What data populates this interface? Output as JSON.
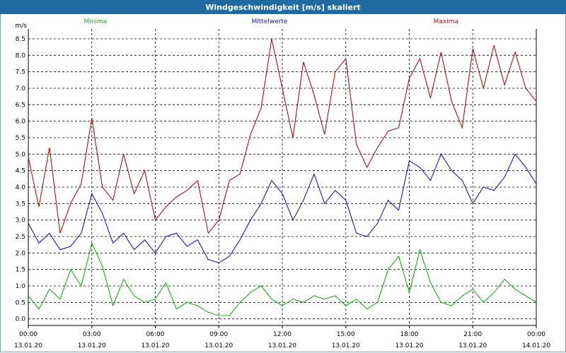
{
  "window": {
    "title": "Windgeschwindigkeit [m/s] skaliert"
  },
  "chart_data": {
    "type": "line",
    "ylabel": "m/s",
    "ylim": [
      -0.2,
      8.8
    ],
    "yticks": [
      "0.0",
      "0.5",
      "1.0",
      "1.5",
      "2.0",
      "2.5",
      "3.0",
      "3.5",
      "4.0",
      "4.5",
      "5.0",
      "5.5",
      "6.0",
      "6.5",
      "7.0",
      "7.5",
      "8.0",
      "8.5"
    ],
    "xlim": [
      0,
      24
    ],
    "xticks": [
      {
        "time": "00:00",
        "date": "13.01.20"
      },
      {
        "time": "03:00",
        "date": "13.01.20"
      },
      {
        "time": "06:00",
        "date": "13.01.20"
      },
      {
        "time": "09:00",
        "date": "13.01.20"
      },
      {
        "time": "12:00",
        "date": "13.01.20"
      },
      {
        "time": "15:00",
        "date": "13.01.20"
      },
      {
        "time": "18:00",
        "date": "13.01.20"
      },
      {
        "time": "21:00",
        "date": "13.01.20"
      },
      {
        "time": "00:00",
        "date": "14.01.20"
      }
    ],
    "grid": true,
    "legend_position": "top",
    "series": [
      {
        "name": "Minima",
        "color": "#1faa1f",
        "x": [
          0,
          0.5,
          1,
          1.5,
          2,
          2.5,
          3,
          3.5,
          4,
          4.5,
          5,
          5.5,
          6,
          6.5,
          7,
          7.5,
          8,
          8.5,
          9,
          9.5,
          10,
          10.5,
          11,
          11.5,
          12,
          12.5,
          13,
          13.5,
          14,
          14.5,
          15,
          15.5,
          16,
          16.5,
          17,
          17.5,
          18,
          18.5,
          19,
          19.5,
          20,
          20.5,
          21,
          21.5,
          22,
          22.5,
          23,
          23.5,
          24
        ],
        "values": [
          0.7,
          0.3,
          0.9,
          0.6,
          1.5,
          1.0,
          2.3,
          1.6,
          0.4,
          1.2,
          0.7,
          0.5,
          0.6,
          1.1,
          0.3,
          0.5,
          0.4,
          0.2,
          0.1,
          0.1,
          0.5,
          0.8,
          1.0,
          0.6,
          0.4,
          0.6,
          0.5,
          0.7,
          0.6,
          0.7,
          0.4,
          0.6,
          0.3,
          0.5,
          1.5,
          1.9,
          0.8,
          2.1,
          1.1,
          0.5,
          0.4,
          0.7,
          0.9,
          0.5,
          0.8,
          1.2,
          0.9,
          0.7,
          0.5
        ]
      },
      {
        "name": "Mittelwerte",
        "color": "#1a1aa6",
        "x": [
          0,
          0.5,
          1,
          1.5,
          2,
          2.5,
          3,
          3.5,
          4,
          4.5,
          5,
          5.5,
          6,
          6.5,
          7,
          7.5,
          8,
          8.5,
          9,
          9.5,
          10,
          10.5,
          11,
          11.5,
          12,
          12.5,
          13,
          13.5,
          14,
          14.5,
          15,
          15.5,
          16,
          16.5,
          17,
          17.5,
          18,
          18.5,
          19,
          19.5,
          20,
          20.5,
          21,
          21.5,
          22,
          22.5,
          23,
          23.5,
          24
        ],
        "values": [
          2.9,
          2.3,
          2.6,
          2.1,
          2.2,
          2.6,
          3.8,
          3.2,
          2.3,
          2.6,
          2.1,
          2.4,
          2.0,
          2.5,
          2.6,
          2.2,
          2.4,
          1.8,
          1.7,
          1.9,
          2.4,
          3.0,
          3.5,
          4.2,
          3.8,
          3.0,
          3.6,
          4.4,
          3.5,
          3.9,
          3.6,
          2.6,
          2.5,
          2.9,
          3.6,
          3.3,
          4.8,
          4.6,
          4.2,
          5.0,
          4.5,
          4.2,
          3.5,
          4.0,
          3.9,
          4.3,
          5.0,
          4.6,
          4.1
        ]
      },
      {
        "name": "Maxima",
        "color": "#a01818",
        "x": [
          0,
          0.5,
          1,
          1.5,
          2,
          2.5,
          3,
          3.5,
          4,
          4.5,
          5,
          5.5,
          6,
          6.5,
          7,
          7.5,
          8,
          8.5,
          9,
          9.5,
          10,
          10.5,
          11,
          11.5,
          12,
          12.5,
          13,
          13.5,
          14,
          14.5,
          15,
          15.5,
          16,
          16.5,
          17,
          17.5,
          18,
          18.5,
          19,
          19.5,
          20,
          20.5,
          21,
          21.5,
          22,
          22.5,
          23,
          23.5,
          24
        ],
        "values": [
          4.9,
          3.4,
          5.2,
          2.6,
          3.5,
          4.1,
          6.1,
          4.0,
          3.6,
          5.0,
          3.8,
          4.5,
          3.0,
          3.4,
          3.7,
          3.9,
          4.2,
          2.6,
          3.0,
          4.2,
          4.4,
          5.6,
          6.4,
          8.5,
          7.0,
          5.5,
          7.8,
          6.8,
          5.6,
          7.5,
          7.9,
          5.3,
          4.6,
          5.2,
          5.7,
          5.8,
          7.3,
          7.9,
          6.7,
          8.1,
          6.6,
          5.8,
          8.2,
          7.0,
          8.3,
          7.1,
          8.1,
          7.0,
          6.6
        ]
      }
    ]
  }
}
